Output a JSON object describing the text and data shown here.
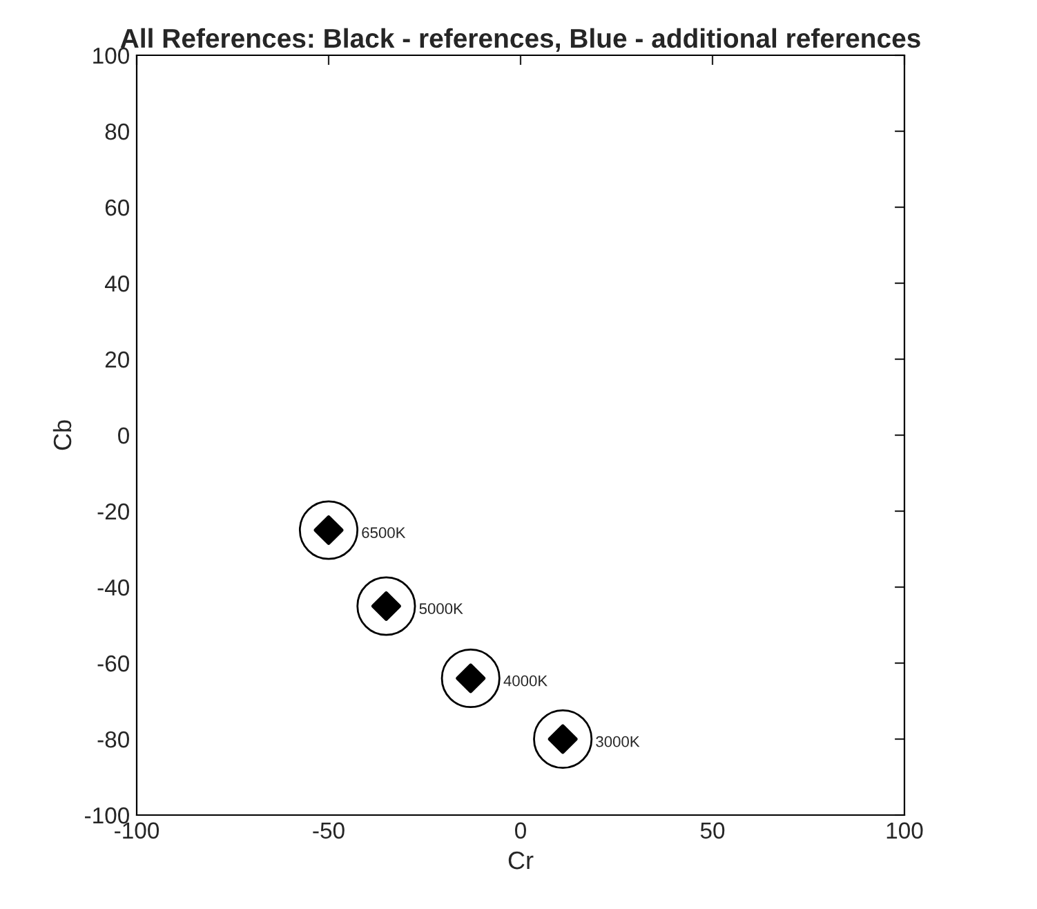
{
  "chart_data": {
    "type": "scatter",
    "title": "All References: Black - references, Blue - additional references",
    "xlabel": "Cr",
    "ylabel": "Cb",
    "x": [
      -50,
      -35,
      -13,
      11
    ],
    "series": [
      {
        "color": "#000000",
        "marker": "circle",
        "values": [
          -25,
          -45,
          -64,
          -80
        ]
      },
      {
        "color": "#000000",
        "marker": "diamond",
        "values": [
          -25,
          -45,
          -64,
          -80
        ]
      }
    ],
    "annotations": [
      {
        "text": "6500K",
        "x": -50,
        "y": -25
      },
      {
        "text": "5000K",
        "x": -35,
        "y": -45
      },
      {
        "text": "4000K",
        "x": -13,
        "y": -64
      },
      {
        "text": "3000K",
        "x": 11,
        "y": -80
      }
    ],
    "xlim": [
      -100,
      100
    ],
    "ylim": [
      -100,
      100
    ],
    "xticks": [
      -100,
      -50,
      0,
      50,
      100
    ],
    "yticks": [
      -100,
      -80,
      -60,
      -40,
      -20,
      0,
      20,
      40,
      60,
      80,
      100
    ],
    "grid": false,
    "legend": false
  }
}
